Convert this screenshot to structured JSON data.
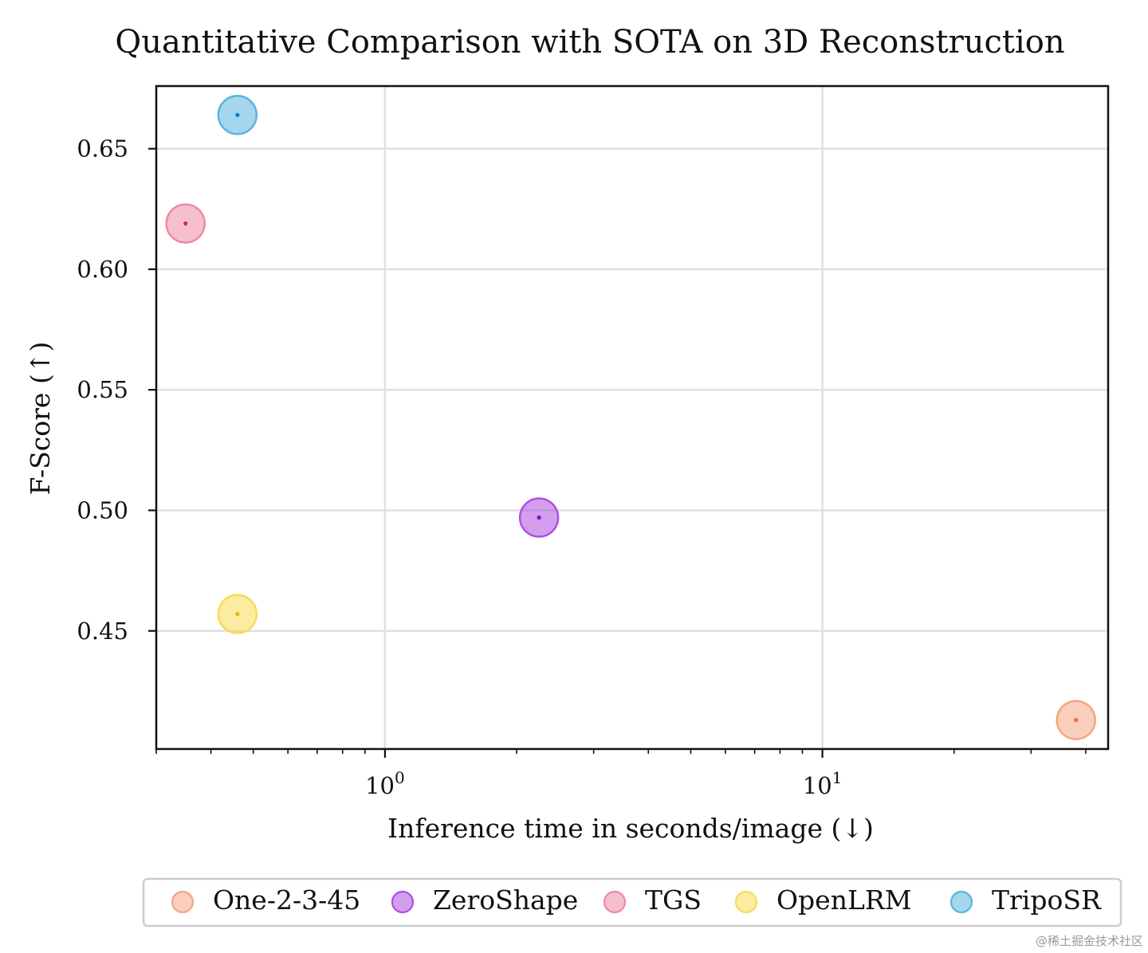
{
  "chart_data": {
    "type": "scatter",
    "title": "Quantitative Comparison with SOTA on 3D Reconstruction",
    "xlabel": "Inference time in seconds/image (↓)",
    "ylabel": "F-Score (↑)",
    "x_scale": "log",
    "xlim": [
      0.3,
      45
    ],
    "ylim": [
      0.401,
      0.676
    ],
    "x_ticks": [
      {
        "value": 1,
        "base": "10",
        "exp": "0"
      },
      {
        "value": 10,
        "base": "10",
        "exp": "1"
      }
    ],
    "y_ticks": [
      {
        "value": 0.45,
        "label": "0.45"
      },
      {
        "value": 0.5,
        "label": "0.50"
      },
      {
        "value": 0.55,
        "label": "0.55"
      },
      {
        "value": 0.6,
        "label": "0.60"
      },
      {
        "value": 0.65,
        "label": "0.65"
      }
    ],
    "grid": true,
    "legend_position": "bottom",
    "series": [
      {
        "name": "One-2-3-45",
        "x": 38.0,
        "y": 0.413,
        "color": "#f4a582",
        "dot": "#f26b2a"
      },
      {
        "name": "ZeroShape",
        "x": 2.25,
        "y": 0.497,
        "color": "#b04fe0",
        "dot": "#8a00c9"
      },
      {
        "name": "TGS",
        "x": 0.35,
        "y": 0.619,
        "color": "#ee8aa3",
        "dot": "#e0245a"
      },
      {
        "name": "OpenLRM",
        "x": 0.46,
        "y": 0.457,
        "color": "#f7dc56",
        "dot": "#e2b300"
      },
      {
        "name": "TripoSR",
        "x": 0.46,
        "y": 0.664,
        "color": "#5ab4e0",
        "dot": "#0a7fc0"
      }
    ]
  },
  "watermark": "@稀土掘金技术社区"
}
